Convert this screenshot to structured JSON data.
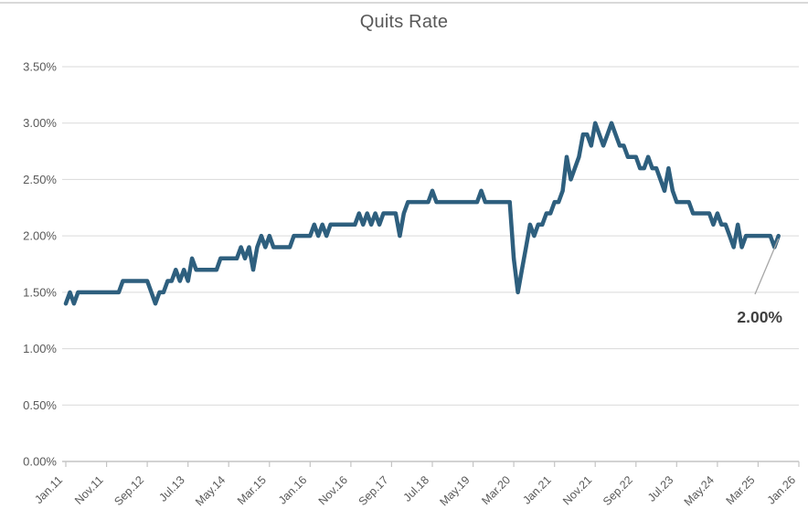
{
  "page": {
    "background": "#ffffff",
    "top_border_color": "#d9d9d9"
  },
  "chart_data": {
    "type": "line",
    "title": "Quits Rate",
    "legend": "none",
    "grid": "horizontal",
    "series": [
      {
        "name": "Quits Rate",
        "unit": "percent",
        "frequency": "monthly",
        "start_month": "Jan 2011",
        "end_month": "Aug 2025",
        "values": [
          1.4,
          1.5,
          1.4,
          1.5,
          1.5,
          1.5,
          1.5,
          1.5,
          1.5,
          1.5,
          1.5,
          1.5,
          1.5,
          1.5,
          1.6,
          1.6,
          1.6,
          1.6,
          1.6,
          1.6,
          1.6,
          1.5,
          1.4,
          1.5,
          1.5,
          1.6,
          1.6,
          1.7,
          1.6,
          1.7,
          1.6,
          1.8,
          1.7,
          1.7,
          1.7,
          1.7,
          1.7,
          1.7,
          1.8,
          1.8,
          1.8,
          1.8,
          1.8,
          1.9,
          1.8,
          1.9,
          1.7,
          1.9,
          2.0,
          1.9,
          2.0,
          1.9,
          1.9,
          1.9,
          1.9,
          1.9,
          2.0,
          2.0,
          2.0,
          2.0,
          2.0,
          2.1,
          2.0,
          2.1,
          2.0,
          2.1,
          2.1,
          2.1,
          2.1,
          2.1,
          2.1,
          2.1,
          2.2,
          2.1,
          2.2,
          2.1,
          2.2,
          2.1,
          2.2,
          2.2,
          2.2,
          2.2,
          2.0,
          2.2,
          2.3,
          2.3,
          2.3,
          2.3,
          2.3,
          2.3,
          2.4,
          2.3,
          2.3,
          2.3,
          2.3,
          2.3,
          2.3,
          2.3,
          2.3,
          2.3,
          2.3,
          2.3,
          2.4,
          2.3,
          2.3,
          2.3,
          2.3,
          2.3,
          2.3,
          2.3,
          1.8,
          1.5,
          1.7,
          1.9,
          2.1,
          2.0,
          2.1,
          2.1,
          2.2,
          2.2,
          2.3,
          2.3,
          2.4,
          2.7,
          2.5,
          2.6,
          2.7,
          2.9,
          2.9,
          2.8,
          3.0,
          2.9,
          2.8,
          2.9,
          3.0,
          2.9,
          2.8,
          2.8,
          2.7,
          2.7,
          2.7,
          2.6,
          2.6,
          2.7,
          2.6,
          2.6,
          2.5,
          2.4,
          2.6,
          2.4,
          2.3,
          2.3,
          2.3,
          2.3,
          2.2,
          2.2,
          2.2,
          2.2,
          2.2,
          2.1,
          2.2,
          2.1,
          2.1,
          2.0,
          1.9,
          2.1,
          1.9,
          2.0,
          2.0,
          2.0,
          2.0,
          2.0,
          2.0,
          2.0,
          1.9,
          2.0
        ]
      }
    ],
    "x_axis": {
      "range": [
        "Jan 2011",
        "Jan 2026"
      ],
      "total_categories": 181,
      "tick_interval_months": 10,
      "tick_labels": [
        "Jan.11",
        "Nov.11",
        "Sep.12",
        "Jul.13",
        "May.14",
        "Mar.15",
        "Jan.16",
        "Nov.16",
        "Sep.17",
        "Jul.18",
        "May.19",
        "Mar.20",
        "Jan.21",
        "Nov.21",
        "Sep.22",
        "Jul.23",
        "May.24",
        "Mar.25",
        "Jan.26"
      ],
      "label_rotation_deg": -45
    },
    "y_axis": {
      "min": 0,
      "max": 3.5,
      "format": "0.00%",
      "tick_values": [
        3.5,
        3.0,
        2.5,
        2.0,
        1.5,
        1.0,
        0.5,
        0.0
      ],
      "tick_labels": [
        "3.50%",
        "3.00%",
        "2.50%",
        "2.00%",
        "1.50%",
        "1.00%",
        "0.50%",
        "0.00%"
      ]
    },
    "end_label": {
      "text": "2.00%",
      "value": 2.0
    },
    "colors": {
      "line": "#2e5f7e",
      "grid": "#d9d9d9",
      "axis": "#c4c4c4",
      "tick_text": "#595959",
      "title_text": "#595959",
      "end_label_text": "#404040",
      "leader_line": "#a6a6a6"
    }
  }
}
